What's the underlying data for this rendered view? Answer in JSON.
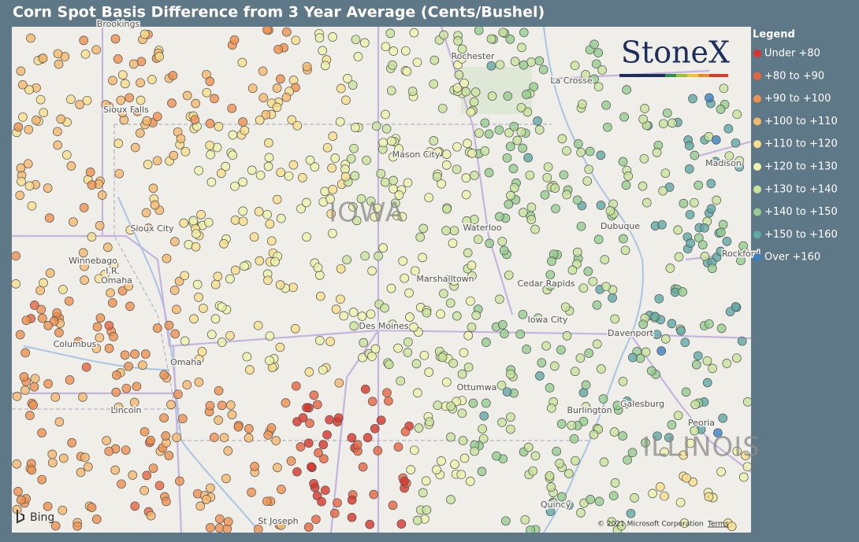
{
  "header": {
    "title": "Corn Spot Basis Difference from 3 Year Average (Cents/Bushel)"
  },
  "legend": {
    "title": "Legend",
    "items": [
      {
        "label": "Under +80",
        "color": "#d9342b"
      },
      {
        "label": "+80 to +90",
        "color": "#e8643e"
      },
      {
        "label": "+90 to +100",
        "color": "#f0904c"
      },
      {
        "label": "+100 to +110",
        "color": "#f5b86b"
      },
      {
        "label": "+110 to +120",
        "color": "#f8de8a"
      },
      {
        "label": "+120 to +130",
        "color": "#eef2aa"
      },
      {
        "label": "+130 to +140",
        "color": "#c8e39b"
      },
      {
        "label": "+140 to +150",
        "color": "#95cd8e"
      },
      {
        "label": "+150 to +160",
        "color": "#5fa9a6"
      },
      {
        "label": "Over +160",
        "color": "#3a7fc0"
      }
    ]
  },
  "map": {
    "logo": "StoneX",
    "cities": [
      "Brookings",
      "Rochester",
      "La Crosse",
      "Sioux Falls",
      "Mason City",
      "Sioux City",
      "Waterloo",
      "Dubuque",
      "Madison",
      "Rockford",
      "Winnebago",
      "I.R.",
      "Omaha",
      "Marshalltown",
      "Cedar Rapids",
      "Columbus",
      "Omaha",
      "Des Moines",
      "Iowa City",
      "Davenport",
      "Ottumwa",
      "Galesburg",
      "Burlington",
      "Peoria",
      "Lincoln",
      "St Joseph",
      "Quincy"
    ],
    "states": [
      "IOWA",
      "ILLINOIS"
    ],
    "attribution": "Bing",
    "copyright": "© 2021 Microsoft Corporation",
    "terms": "Terms"
  }
}
